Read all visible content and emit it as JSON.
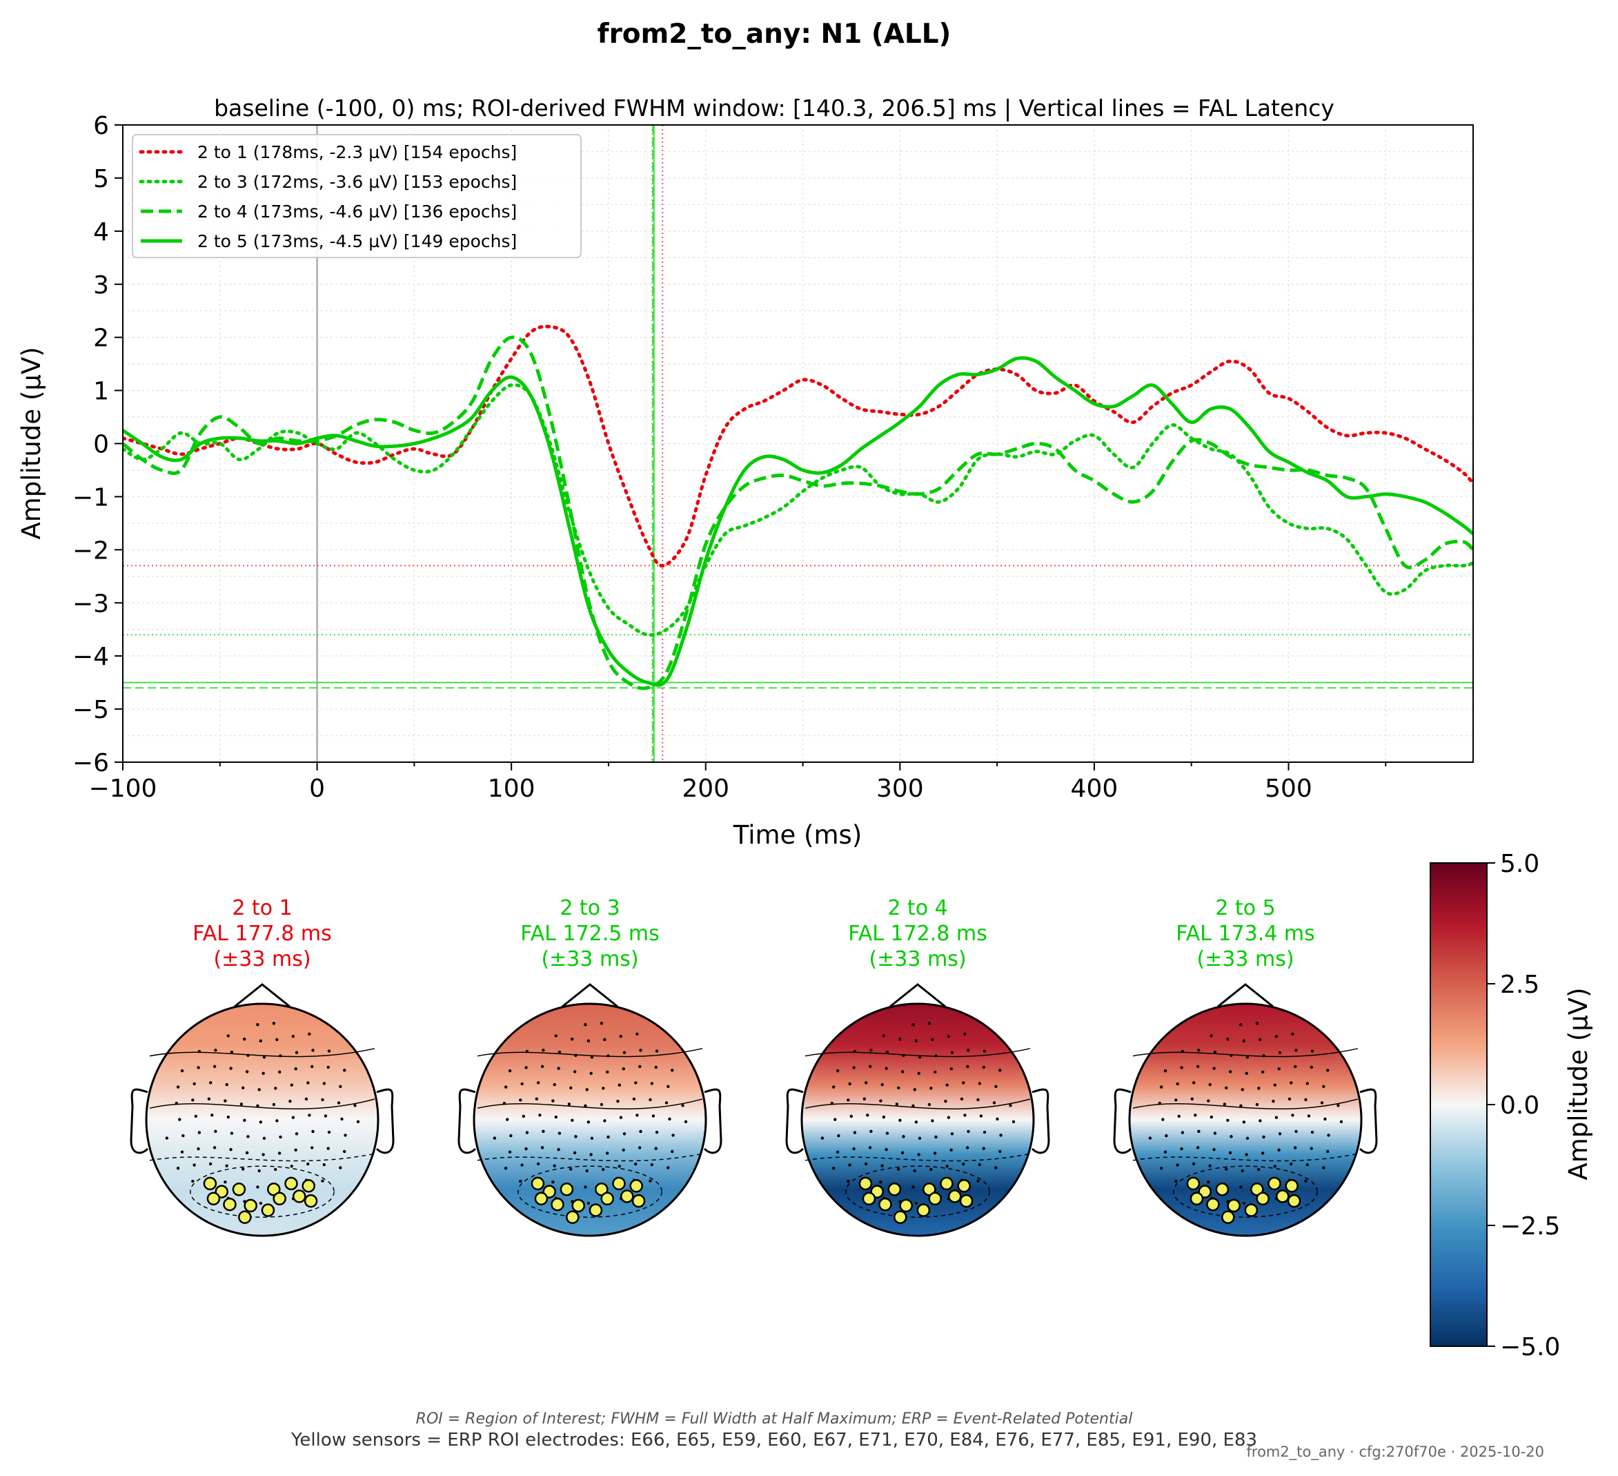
{
  "figure": {
    "suptitle": "from2_to_any: N1 (ALL)",
    "footnote_abbrev": "ROI = Region of Interest; FWHM = Full Width at Half Maximum; ERP = Event-Related Potential",
    "footnote_sensors": "Yellow sensors = ERP ROI electrodes: E66, E65, E59, E60, E67, E71, E70, E84, E76, E77, E85, E91, E90, E83",
    "stamp": "from2_to_any · cfg:270f70e · 2025-10-20"
  },
  "chart_data": [
    {
      "type": "line",
      "title": "baseline (-100, 0) ms; ROI-derived FWHM window: [140.3, 206.5] ms | Vertical lines = FAL Latency",
      "xlabel": "Time (ms)",
      "ylabel": "Amplitude (µV)",
      "xlim": [
        -100,
        595
      ],
      "ylim": [
        -6,
        6
      ],
      "xticks": [
        -100,
        0,
        100,
        200,
        300,
        400,
        500
      ],
      "xtick_labels": [
        "−100",
        "0",
        "100",
        "200",
        "300",
        "400",
        "500"
      ],
      "yticks": [
        -6,
        -5,
        -4,
        -3,
        -2,
        -1,
        0,
        1,
        2,
        3,
        4,
        5,
        6
      ],
      "ytick_labels": [
        "−6",
        "−5",
        "−4",
        "−3",
        "−2",
        "−1",
        "0",
        "1",
        "2",
        "3",
        "4",
        "5",
        "6"
      ],
      "grid": true,
      "legend_position": "top-left",
      "stimulus_onset_ms": 0,
      "series": [
        {
          "name": "2 to 1 (178ms, -2.3 µV) [154 epochs]",
          "color": "#e8000b",
          "style": "dotted",
          "peak_latency_ms": 177.8,
          "peak_amplitude_uv": -2.3,
          "x": [
            -100,
            -90,
            -80,
            -70,
            -60,
            -50,
            -40,
            -30,
            -20,
            -10,
            0,
            10,
            20,
            30,
            40,
            50,
            60,
            70,
            80,
            90,
            100,
            110,
            120,
            130,
            140,
            150,
            160,
            170,
            178,
            190,
            200,
            210,
            220,
            230,
            240,
            250,
            260,
            270,
            280,
            290,
            300,
            310,
            320,
            330,
            340,
            350,
            360,
            370,
            380,
            390,
            400,
            410,
            420,
            430,
            440,
            450,
            460,
            470,
            480,
            490,
            500,
            510,
            520,
            530,
            540,
            550,
            560,
            570,
            580,
            590,
            595
          ],
          "y": [
            0.1,
            0.0,
            -0.1,
            -0.2,
            -0.1,
            0.0,
            0.1,
            0.0,
            -0.1,
            -0.1,
            0.0,
            -0.2,
            -0.35,
            -0.35,
            -0.2,
            -0.1,
            -0.2,
            -0.2,
            0.3,
            1.0,
            1.6,
            2.1,
            2.2,
            2.0,
            1.2,
            0.0,
            -1.0,
            -1.9,
            -2.3,
            -1.8,
            -0.6,
            0.3,
            0.65,
            0.8,
            1.0,
            1.2,
            1.1,
            0.85,
            0.65,
            0.6,
            0.55,
            0.55,
            0.7,
            1.0,
            1.3,
            1.4,
            1.3,
            1.0,
            0.95,
            1.1,
            0.8,
            0.6,
            0.4,
            0.7,
            0.95,
            1.1,
            1.35,
            1.55,
            1.4,
            0.95,
            0.85,
            0.6,
            0.3,
            0.15,
            0.2,
            0.2,
            0.1,
            -0.1,
            -0.3,
            -0.55,
            -0.75
          ]
        },
        {
          "name": "2 to 3 (172ms, -3.6 µV) [153 epochs]",
          "color": "#00cc00",
          "style": "dotted",
          "peak_latency_ms": 172.5,
          "peak_amplitude_uv": -3.6,
          "x": [
            -100,
            -90,
            -80,
            -70,
            -60,
            -50,
            -40,
            -30,
            -20,
            -10,
            0,
            10,
            20,
            30,
            40,
            50,
            60,
            70,
            80,
            90,
            100,
            110,
            120,
            130,
            140,
            150,
            160,
            170,
            180,
            190,
            200,
            210,
            220,
            230,
            240,
            250,
            260,
            270,
            280,
            290,
            300,
            310,
            320,
            330,
            340,
            350,
            360,
            370,
            380,
            390,
            400,
            410,
            420,
            430,
            440,
            450,
            460,
            470,
            480,
            490,
            500,
            510,
            520,
            530,
            540,
            550,
            560,
            570,
            580,
            590,
            595
          ],
          "y": [
            -0.1,
            -0.3,
            -0.1,
            0.2,
            0.0,
            0.0,
            -0.3,
            -0.1,
            0.2,
            0.2,
            0.0,
            -0.1,
            0.2,
            0.0,
            -0.3,
            -0.5,
            -0.5,
            -0.2,
            0.3,
            0.8,
            1.1,
            0.9,
            0.0,
            -1.3,
            -2.4,
            -3.1,
            -3.4,
            -3.6,
            -3.5,
            -3.1,
            -2.3,
            -1.7,
            -1.55,
            -1.4,
            -1.2,
            -0.9,
            -0.65,
            -0.5,
            -0.45,
            -0.8,
            -0.95,
            -0.95,
            -1.1,
            -0.85,
            -0.3,
            -0.2,
            -0.25,
            -0.15,
            -0.2,
            0.05,
            0.15,
            -0.2,
            -0.45,
            0.0,
            0.35,
            0.1,
            -0.1,
            -0.2,
            -0.6,
            -1.2,
            -1.5,
            -1.6,
            -1.6,
            -1.8,
            -2.3,
            -2.8,
            -2.75,
            -2.4,
            -2.3,
            -2.3,
            -2.25
          ]
        },
        {
          "name": "2 to 4 (173ms, -4.6 µV) [136 epochs]",
          "color": "#00cc00",
          "style": "dashed",
          "peak_latency_ms": 172.8,
          "peak_amplitude_uv": -4.6,
          "x": [
            -100,
            -90,
            -80,
            -70,
            -60,
            -50,
            -40,
            -30,
            -20,
            -10,
            0,
            10,
            20,
            30,
            40,
            50,
            60,
            70,
            80,
            90,
            100,
            110,
            120,
            130,
            140,
            150,
            160,
            170,
            180,
            190,
            200,
            210,
            220,
            230,
            240,
            250,
            260,
            270,
            280,
            290,
            300,
            310,
            320,
            330,
            340,
            350,
            360,
            370,
            380,
            390,
            400,
            410,
            420,
            430,
            440,
            450,
            460,
            470,
            480,
            490,
            500,
            510,
            520,
            530,
            540,
            550,
            560,
            570,
            580,
            590,
            595
          ],
          "y": [
            0.0,
            -0.3,
            -0.5,
            -0.5,
            0.2,
            0.5,
            0.3,
            0.0,
            0.1,
            0.05,
            0.05,
            0.15,
            0.35,
            0.45,
            0.4,
            0.25,
            0.2,
            0.4,
            0.8,
            1.6,
            2.0,
            1.7,
            0.5,
            -1.2,
            -3.0,
            -4.1,
            -4.5,
            -4.6,
            -4.3,
            -3.2,
            -1.9,
            -1.2,
            -0.8,
            -0.65,
            -0.6,
            -0.7,
            -0.8,
            -0.75,
            -0.75,
            -0.8,
            -0.9,
            -0.95,
            -0.85,
            -0.5,
            -0.2,
            -0.2,
            -0.1,
            0.0,
            -0.1,
            -0.5,
            -0.7,
            -0.95,
            -1.1,
            -0.9,
            -0.35,
            0.05,
            0.0,
            -0.25,
            -0.4,
            -0.45,
            -0.5,
            -0.5,
            -0.6,
            -0.65,
            -0.85,
            -1.6,
            -2.3,
            -2.2,
            -1.9,
            -1.85,
            -2.0
          ]
        },
        {
          "name": "2 to 5 (173ms, -4.5 µV) [149 epochs]",
          "color": "#00cc00",
          "style": "solid",
          "peak_latency_ms": 173.4,
          "peak_amplitude_uv": -4.5,
          "x": [
            -100,
            -90,
            -80,
            -70,
            -60,
            -50,
            -40,
            -30,
            -20,
            -10,
            0,
            10,
            20,
            30,
            40,
            50,
            60,
            70,
            80,
            90,
            100,
            110,
            120,
            130,
            140,
            150,
            160,
            170,
            180,
            190,
            200,
            210,
            220,
            230,
            240,
            250,
            260,
            270,
            280,
            290,
            300,
            310,
            320,
            330,
            340,
            350,
            360,
            370,
            380,
            390,
            400,
            410,
            420,
            430,
            440,
            450,
            460,
            470,
            480,
            490,
            500,
            510,
            520,
            530,
            540,
            550,
            560,
            570,
            580,
            590,
            595
          ],
          "y": [
            0.25,
            0.0,
            -0.25,
            -0.3,
            0.0,
            0.1,
            0.1,
            0.05,
            0.05,
            0.0,
            0.1,
            0.15,
            0.05,
            -0.05,
            -0.05,
            0.0,
            0.1,
            0.25,
            0.5,
            1.0,
            1.25,
            0.9,
            -0.1,
            -1.6,
            -3.1,
            -3.9,
            -4.3,
            -4.5,
            -4.45,
            -3.5,
            -2.2,
            -1.2,
            -0.5,
            -0.25,
            -0.3,
            -0.5,
            -0.55,
            -0.4,
            -0.1,
            0.15,
            0.4,
            0.7,
            1.1,
            1.3,
            1.3,
            1.4,
            1.6,
            1.55,
            1.25,
            1.0,
            0.75,
            0.7,
            0.9,
            1.1,
            0.75,
            0.4,
            0.65,
            0.65,
            0.3,
            -0.15,
            -0.35,
            -0.55,
            -0.7,
            -1.0,
            -1.0,
            -0.95,
            -1.0,
            -1.1,
            -1.3,
            -1.55,
            -1.7
          ]
        }
      ]
    },
    {
      "type": "topomap",
      "colorbar": {
        "label": "Amplitude (µV)",
        "vmin": -5.0,
        "vmax": 5.0,
        "ticks": [
          5.0,
          2.5,
          0.0,
          -2.5,
          -5.0
        ],
        "tick_labels": [
          "5.0",
          "2.5",
          "0.0",
          "−2.5",
          "−5.0"
        ],
        "colormap": "RdBu_r"
      },
      "roi_electrodes": [
        "E66",
        "E65",
        "E59",
        "E60",
        "E67",
        "E71",
        "E70",
        "E84",
        "E76",
        "E77",
        "E85",
        "E91",
        "E90",
        "E83"
      ],
      "maps": [
        {
          "title_line1": "2 to 1",
          "title_line2": "FAL 177.8 ms",
          "title_line3": "(±33 ms)",
          "title_color": "#e8000b",
          "frontal_uv": 1.6,
          "posterior_uv": -0.6
        },
        {
          "title_line1": "2 to 3",
          "title_line2": "FAL 172.5 ms",
          "title_line3": "(±33 ms)",
          "title_color": "#00cc00",
          "frontal_uv": 2.4,
          "posterior_uv": -2.8
        },
        {
          "title_line1": "2 to 4",
          "title_line2": "FAL 172.8 ms",
          "title_line3": "(±33 ms)",
          "title_color": "#00cc00",
          "frontal_uv": 4.2,
          "posterior_uv": -4.6
        },
        {
          "title_line1": "2 to 5",
          "title_line2": "FAL 173.4 ms",
          "title_line3": "(±33 ms)",
          "title_color": "#00cc00",
          "frontal_uv": 3.8,
          "posterior_uv": -4.5
        }
      ]
    }
  ]
}
